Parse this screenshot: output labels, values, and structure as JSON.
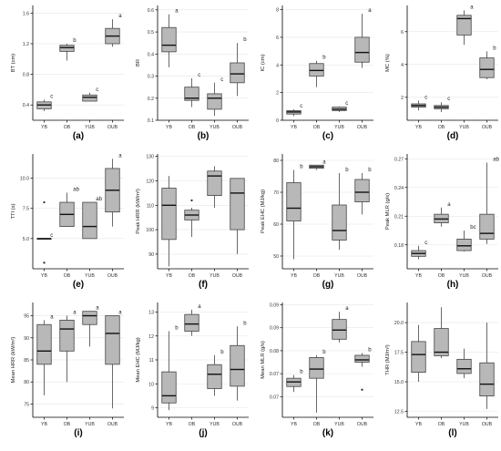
{
  "colors": {
    "box_fill": "#b8b8b8",
    "box_stroke": "#444444",
    "axis": "#000000",
    "grid": "#e6e6e6"
  },
  "chart_data": [
    {
      "type": "box",
      "panel_label": "(a)",
      "ylabel": "BT (cm)",
      "categories": [
        "YB",
        "OB",
        "YUB",
        "OUB"
      ],
      "ylim": [
        0.2,
        1.7
      ],
      "yticks": [
        0.4,
        0.8,
        1.2,
        1.6
      ],
      "tick_decimals": 1,
      "boxes": [
        {
          "min": 0.32,
          "q1": 0.35,
          "median": 0.4,
          "q3": 0.44,
          "max": 0.47,
          "letter": "c"
        },
        {
          "min": 0.98,
          "q1": 1.1,
          "median": 1.15,
          "q3": 1.18,
          "max": 1.2,
          "letter": "b"
        },
        {
          "min": 0.45,
          "q1": 0.45,
          "median": 0.5,
          "q3": 0.53,
          "max": 0.56,
          "letter": "c"
        },
        {
          "min": 1.16,
          "q1": 1.2,
          "median": 1.3,
          "q3": 1.4,
          "max": 1.52,
          "letter": "a"
        }
      ],
      "outliers": []
    },
    {
      "type": "box",
      "panel_label": "(b)",
      "ylabel": "BR",
      "categories": [
        "YB",
        "OB",
        "YUB",
        "OUB"
      ],
      "ylim": [
        0.1,
        0.62
      ],
      "yticks": [
        0.1,
        0.2,
        0.3,
        0.4,
        0.5,
        0.6
      ],
      "tick_decimals": 1,
      "boxes": [
        {
          "min": 0.34,
          "q1": 0.41,
          "median": 0.44,
          "q3": 0.52,
          "max": 0.58,
          "letter": "a"
        },
        {
          "min": 0.16,
          "q1": 0.19,
          "median": 0.2,
          "q3": 0.25,
          "max": 0.29,
          "letter": "c"
        },
        {
          "min": 0.12,
          "q1": 0.15,
          "median": 0.2,
          "q3": 0.22,
          "max": 0.27,
          "letter": "c"
        },
        {
          "min": 0.21,
          "q1": 0.27,
          "median": 0.31,
          "q3": 0.36,
          "max": 0.45,
          "letter": "b"
        }
      ],
      "outliers": []
    },
    {
      "type": "box",
      "panel_label": "(c)",
      "ylabel": "IC (cm)",
      "categories": [
        "YB",
        "OB",
        "YUB",
        "OUB"
      ],
      "ylim": [
        0,
        8.3
      ],
      "yticks": [
        0,
        2,
        4,
        6,
        8
      ],
      "tick_decimals": 0,
      "boxes": [
        {
          "min": 0.3,
          "q1": 0.45,
          "median": 0.6,
          "q3": 0.7,
          "max": 0.8,
          "letter": "c"
        },
        {
          "min": 2.4,
          "q1": 3.2,
          "median": 3.6,
          "q3": 4.1,
          "max": 4.3,
          "letter": "b"
        },
        {
          "min": 0.6,
          "q1": 0.7,
          "median": 0.8,
          "q3": 0.95,
          "max": 1.0,
          "letter": "c"
        },
        {
          "min": 3.8,
          "q1": 4.2,
          "median": 4.9,
          "q3": 6.0,
          "max": 7.7,
          "letter": "a"
        }
      ],
      "outliers": []
    },
    {
      "type": "box",
      "panel_label": "(d)",
      "ylabel": "MC (%)",
      "categories": [
        "YB",
        "OB",
        "YUB",
        "OUB"
      ],
      "ylim": [
        0.6,
        7.6
      ],
      "yticks": [
        2,
        4,
        6
      ],
      "tick_decimals": 0,
      "boxes": [
        {
          "min": 1.2,
          "q1": 1.4,
          "median": 1.5,
          "q3": 1.6,
          "max": 1.8,
          "letter": "c"
        },
        {
          "min": 1.1,
          "q1": 1.3,
          "median": 1.4,
          "q3": 1.5,
          "max": 1.7,
          "letter": "c"
        },
        {
          "min": 5.2,
          "q1": 5.8,
          "median": 6.8,
          "q3": 7.0,
          "max": 7.3,
          "letter": "a"
        },
        {
          "min": 3.1,
          "q1": 3.2,
          "median": 3.7,
          "q3": 4.4,
          "max": 4.8,
          "letter": "b"
        }
      ],
      "outliers": []
    },
    {
      "type": "box",
      "panel_label": "(e)",
      "ylabel": "TTI (s)",
      "categories": [
        "YB",
        "OB",
        "YUB",
        "OUB"
      ],
      "ylim": [
        2.5,
        12.0
      ],
      "yticks": [
        5.0,
        7.5,
        10.0
      ],
      "tick_decimals": 1,
      "boxes": [
        {
          "min": 5.0,
          "q1": 5.0,
          "median": 5.0,
          "q3": 5.0,
          "max": 5.0,
          "letter": "c"
        },
        {
          "min": 6.0,
          "q1": 6.0,
          "median": 7.0,
          "q3": 8.0,
          "max": 8.8,
          "letter": "ab"
        },
        {
          "min": 5.0,
          "q1": 5.0,
          "median": 6.0,
          "q3": 8.0,
          "max": 8.0,
          "letter": "ab"
        },
        {
          "min": 6.0,
          "q1": 7.2,
          "median": 9.0,
          "q3": 10.8,
          "max": 11.6,
          "letter": "a"
        }
      ],
      "outliers": [
        {
          "group": 0,
          "value": 8.0
        },
        {
          "group": 0,
          "value": 3.0
        }
      ]
    },
    {
      "type": "box",
      "panel_label": "(f)",
      "ylabel": "Peak HRR (kW/m²)",
      "categories": [
        "YB",
        "OB",
        "YUB",
        "OUB"
      ],
      "ylim": [
        84,
        131
      ],
      "yticks": [
        90,
        100,
        110,
        120,
        130
      ],
      "tick_decimals": 0,
      "boxes": [
        {
          "min": 85,
          "q1": 96,
          "median": 110,
          "q3": 117,
          "max": 122,
          "letter": ""
        },
        {
          "min": 97,
          "q1": 104,
          "median": 106,
          "q3": 108,
          "max": 109,
          "letter": ""
        },
        {
          "min": 109,
          "q1": 114,
          "median": 122,
          "q3": 124,
          "max": 126,
          "letter": ""
        },
        {
          "min": 90,
          "q1": 100,
          "median": 115,
          "q3": 121,
          "max": 121,
          "letter": ""
        }
      ],
      "outliers": [
        {
          "group": 1,
          "value": 112
        }
      ]
    },
    {
      "type": "box",
      "panel_label": "(g)",
      "ylabel": "Peak EHC (MJ/kg)",
      "categories": [
        "YB",
        "OB",
        "YUB",
        "OUB"
      ],
      "ylim": [
        46,
        82
      ],
      "yticks": [
        50,
        60,
        70,
        80
      ],
      "tick_decimals": 0,
      "boxes": [
        {
          "min": 49,
          "q1": 61,
          "median": 65,
          "q3": 73,
          "max": 77,
          "letter": "b"
        },
        {
          "min": 77,
          "q1": 77.5,
          "median": 78,
          "q3": 78.5,
          "max": 78.5,
          "letter": "a"
        },
        {
          "min": 52,
          "q1": 55,
          "median": 58,
          "q3": 66,
          "max": 76,
          "letter": "b"
        },
        {
          "min": 63,
          "q1": 67,
          "median": 70,
          "q3": 74,
          "max": 76,
          "letter": "b"
        }
      ],
      "outliers": []
    },
    {
      "type": "box",
      "panel_label": "(h)",
      "ylabel": "Peak MLR (g/s)",
      "categories": [
        "YB",
        "OB",
        "YUB",
        "OUB"
      ],
      "ylim": [
        0.155,
        0.275
      ],
      "yticks": [
        0.18,
        0.21,
        0.24,
        0.27
      ],
      "tick_decimals": 2,
      "boxes": [
        {
          "min": 0.165,
          "q1": 0.168,
          "median": 0.171,
          "q3": 0.174,
          "max": 0.179,
          "letter": "c"
        },
        {
          "min": 0.199,
          "q1": 0.203,
          "median": 0.207,
          "q3": 0.212,
          "max": 0.219,
          "letter": "a"
        },
        {
          "min": 0.173,
          "q1": 0.174,
          "median": 0.179,
          "q3": 0.186,
          "max": 0.195,
          "letter": "bc"
        },
        {
          "min": 0.181,
          "q1": 0.186,
          "median": 0.192,
          "q3": 0.212,
          "max": 0.266,
          "letter": "ab"
        }
      ],
      "outliers": []
    },
    {
      "type": "box",
      "panel_label": "(i)",
      "ylabel": "Mean HRR (kW/m²)",
      "categories": [
        "YB",
        "OB",
        "YUB",
        "OUB"
      ],
      "ylim": [
        72,
        98
      ],
      "yticks": [
        75,
        80,
        85,
        90,
        95
      ],
      "tick_decimals": 0,
      "boxes": [
        {
          "min": 77,
          "q1": 84,
          "median": 87,
          "q3": 93,
          "max": 94,
          "letter": "a"
        },
        {
          "min": 80,
          "q1": 87,
          "median": 92,
          "q3": 94,
          "max": 95,
          "letter": "a"
        },
        {
          "min": 88,
          "q1": 93,
          "median": 95,
          "q3": 96,
          "max": 96,
          "letter": "a"
        },
        {
          "min": 74,
          "q1": 84,
          "median": 91,
          "q3": 95,
          "max": 95,
          "letter": "a"
        }
      ],
      "outliers": []
    },
    {
      "type": "box",
      "panel_label": "(j)",
      "ylabel": "Mean EHC (MJ/kg)",
      "categories": [
        "YB",
        "OB",
        "YUB",
        "OUB"
      ],
      "ylim": [
        8.6,
        13.4
      ],
      "yticks": [
        9,
        10,
        11,
        12,
        13
      ],
      "tick_decimals": 0,
      "boxes": [
        {
          "min": 8.9,
          "q1": 9.2,
          "median": 9.5,
          "q3": 10.5,
          "max": 12.2,
          "letter": "b"
        },
        {
          "min": 12.0,
          "q1": 12.2,
          "median": 12.5,
          "q3": 12.9,
          "max": 13.1,
          "letter": "a"
        },
        {
          "min": 9.5,
          "q1": 9.8,
          "median": 10.4,
          "q3": 10.8,
          "max": 11.2,
          "letter": "b"
        },
        {
          "min": 9.3,
          "q1": 9.9,
          "median": 10.6,
          "q3": 11.6,
          "max": 12.4,
          "letter": "b"
        }
      ],
      "outliers": []
    },
    {
      "type": "box",
      "panel_label": "(k)",
      "ylabel": "Mean MLR (g/s)",
      "categories": [
        "YB",
        "OB",
        "YUB",
        "OUB"
      ],
      "ylim": [
        0.0655,
        0.0905
      ],
      "yticks": [
        0.07,
        0.075,
        0.08,
        0.085,
        0.09
      ],
      "tick_decimals": 2,
      "boxes": [
        {
          "min": 0.071,
          "q1": 0.0722,
          "median": 0.0732,
          "q3": 0.074,
          "max": 0.0747,
          "letter": "b"
        },
        {
          "min": 0.0665,
          "q1": 0.074,
          "median": 0.076,
          "q3": 0.0785,
          "max": 0.079,
          "letter": "b"
        },
        {
          "min": 0.0818,
          "q1": 0.0825,
          "median": 0.0845,
          "q3": 0.0868,
          "max": 0.0885,
          "letter": "a"
        },
        {
          "min": 0.0765,
          "q1": 0.0775,
          "median": 0.078,
          "q3": 0.079,
          "max": 0.0795,
          "letter": "b"
        }
      ],
      "outliers": [
        {
          "group": 3,
          "value": 0.0715
        }
      ]
    },
    {
      "type": "box",
      "panel_label": "(l)",
      "ylabel": "THR (MJ/m²)",
      "categories": [
        "YB",
        "OB",
        "YUB",
        "OUB"
      ],
      "ylim": [
        12.0,
        21.7
      ],
      "yticks": [
        12.5,
        15.0,
        17.5,
        20.0
      ],
      "tick_decimals": 1,
      "boxes": [
        {
          "min": 15.0,
          "q1": 15.8,
          "median": 17.3,
          "q3": 18.4,
          "max": 19.8,
          "letter": ""
        },
        {
          "min": 17.0,
          "q1": 17.2,
          "median": 17.5,
          "q3": 19.5,
          "max": 21.3,
          "letter": ""
        },
        {
          "min": 15.3,
          "q1": 15.7,
          "median": 16.1,
          "q3": 16.9,
          "max": 17.8,
          "letter": ""
        },
        {
          "min": 12.7,
          "q1": 13.8,
          "median": 14.8,
          "q3": 16.6,
          "max": 20.0,
          "letter": ""
        }
      ],
      "outliers": []
    }
  ]
}
